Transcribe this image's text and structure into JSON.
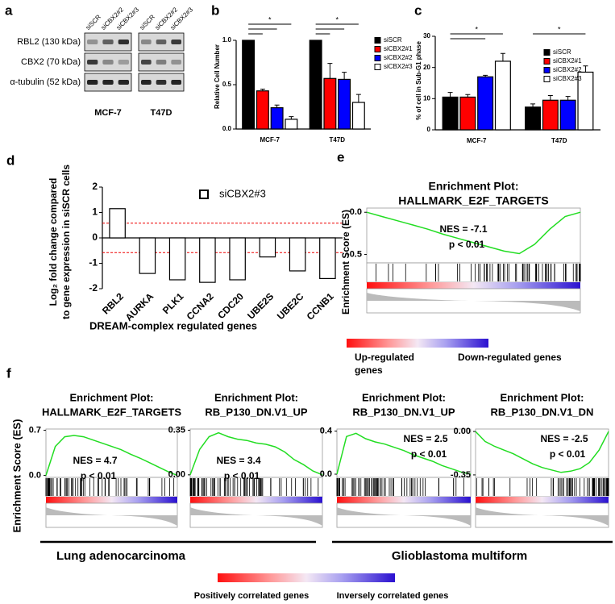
{
  "panel_labels": [
    "a",
    "b",
    "c",
    "d",
    "e",
    "f"
  ],
  "western_blot": {
    "lanes": [
      "siSCR",
      "siCBX2#2",
      "siCBX2#3",
      "siSCR",
      "siCBX2#2",
      "siCBX2#3"
    ],
    "proteins": [
      "RBL2 (130 kDa)",
      "CBX2 (70 kDa)",
      "α-tubulin (52 kDa)"
    ],
    "cell_lines": [
      "MCF-7",
      "T47D"
    ]
  },
  "chart_data": [
    {
      "type": "bar",
      "ylabel": "Relative Cell Number",
      "categories": [
        "MCF-7",
        "T47D"
      ],
      "series": [
        {
          "name": "siSCR",
          "color": "#000000",
          "values": [
            1.0,
            1.0
          ],
          "errors": [
            0,
            0
          ]
        },
        {
          "name": "siCBX2#1",
          "color": "#ff0000",
          "values": [
            0.43,
            0.57
          ],
          "errors": [
            0.02,
            0.17
          ]
        },
        {
          "name": "siCBX2#2",
          "color": "#0000ff",
          "values": [
            0.24,
            0.56
          ],
          "errors": [
            0.03,
            0.08
          ]
        },
        {
          "name": "siCBX2#3",
          "color": "#ffffff",
          "values": [
            0.11,
            0.3
          ],
          "errors": [
            0.03,
            0.09
          ]
        }
      ],
      "ylim": [
        0,
        1.2
      ],
      "yticks": [
        {
          "value": 0,
          "label": "0.0"
        },
        {
          "value": 0.5,
          "label": "0.5"
        },
        {
          "value": 1,
          "label": "1.0"
        }
      ],
      "annotations": [
        "*",
        "*"
      ]
    },
    {
      "type": "bar",
      "ylabel": "% of cell in Sub-G1 phase",
      "categories": [
        "MCF-7",
        "T47D"
      ],
      "series": [
        {
          "name": "siSCR",
          "color": "#000000",
          "values": [
            10.5,
            7.3
          ],
          "errors": [
            1.5,
            1.0
          ]
        },
        {
          "name": "siCBX2#1",
          "color": "#ff0000",
          "values": [
            10.5,
            9.5
          ],
          "errors": [
            0.8,
            1.5
          ]
        },
        {
          "name": "siCBX2#2",
          "color": "#0000ff",
          "values": [
            17,
            9.5
          ],
          "errors": [
            0.5,
            1.2
          ]
        },
        {
          "name": "siCBX2#3",
          "color": "#ffffff",
          "values": [
            22,
            18.5
          ],
          "errors": [
            2.5,
            2.0
          ]
        }
      ],
      "ylim": [
        0,
        30
      ],
      "yticks": [
        0,
        10,
        20,
        30
      ],
      "annotations": [
        "*",
        "*"
      ]
    },
    {
      "type": "bar",
      "ylabel": "Log₂ fold change compared to gene expression in siSCR cells",
      "xlabel": "DREAM-complex regulated genes",
      "categories": [
        "RBL2",
        "AURKA",
        "PLK1",
        "CCNA2",
        "CDC20",
        "UBE2S",
        "UBE2C",
        "CCNB1"
      ],
      "series": [
        {
          "name": "siCBX2#3",
          "color": "#ffffff",
          "values": [
            1.15,
            -1.4,
            -1.65,
            -1.75,
            -1.65,
            -0.75,
            -1.3,
            -1.6
          ]
        }
      ],
      "ylim": [
        -2,
        2
      ],
      "yticks": [
        -2,
        -1,
        0,
        1,
        2
      ],
      "hlines": [
        0.58,
        -0.58
      ]
    },
    {
      "type": "gsea",
      "title": [
        "Enrichment Plot:",
        "HALLMARK_E2F_TARGETS"
      ],
      "ylabel": "Enrichment Score (ES)",
      "values": [
        0,
        -0.05,
        -0.1,
        -0.15,
        -0.2,
        -0.26,
        -0.31,
        -0.36,
        -0.41,
        -0.46,
        -0.49,
        -0.38,
        -0.2,
        -0.05,
        0
      ],
      "ylim": [
        -0.6,
        0.05
      ],
      "yticks": [
        {
          "value": 0,
          "label": "0.0"
        },
        -0.5
      ],
      "nes": "NES = -7.1",
      "p": "p < 0.01"
    },
    {
      "type": "gsea",
      "title": [
        "Enrichment Plot:",
        "HALLMARK_E2F_TARGETS"
      ],
      "values": [
        0,
        0.45,
        0.6,
        0.62,
        0.6,
        0.55,
        0.5,
        0.45,
        0.4,
        0.33,
        0.27,
        0.2,
        0.13,
        0.06,
        0
      ],
      "ylim": [
        -0.03,
        0.72
      ],
      "yticks": [
        {
          "value": 0,
          "label": "0.0"
        },
        0.7
      ],
      "nes": "NES = 4.7",
      "p": "p < 0.01"
    },
    {
      "type": "gsea",
      "title": [
        "Enrichment Plot:",
        "RB_P130_DN.V1_UP"
      ],
      "values": [
        0,
        0.2,
        0.3,
        0.33,
        0.3,
        0.28,
        0.27,
        0.25,
        0.24,
        0.22,
        0.18,
        0.12,
        0.08,
        0.03,
        0
      ],
      "ylim": [
        -0.02,
        0.36
      ],
      "yticks": [
        {
          "value": 0,
          "label": "0.00"
        },
        0.35
      ],
      "nes": "NES = 3.4",
      "p": "p < 0.01"
    },
    {
      "type": "gsea",
      "title": [
        "Enrichment Plot:",
        "RB_P130_DN.V1_UP"
      ],
      "values": [
        0,
        0.35,
        0.38,
        0.33,
        0.3,
        0.28,
        0.25,
        0.22,
        0.18,
        0.15,
        0.12,
        0.08,
        0.05,
        0.02,
        0
      ],
      "ylim": [
        -0.03,
        0.42
      ],
      "yticks": [
        {
          "value": 0,
          "label": "0.0"
        },
        0.4
      ],
      "nes": "NES = 2.5",
      "p": "p < 0.01"
    },
    {
      "type": "gsea",
      "title": [
        "Enrichment Plot:",
        "RB_P130_DN.V1_DN"
      ],
      "values": [
        0,
        -0.08,
        -0.12,
        -0.15,
        -0.18,
        -0.22,
        -0.26,
        -0.29,
        -0.31,
        -0.33,
        -0.32,
        -0.3,
        -0.25,
        -0.15,
        0
      ],
      "ylim": [
        -0.37,
        0.02
      ],
      "yticks": [
        {
          "value": 0,
          "label": "0.00"
        },
        -0.35
      ],
      "nes": "NES = -2.5",
      "p": "p < 0.01"
    }
  ],
  "e_legend": {
    "up": [
      "Up-regulated",
      "genes"
    ],
    "down": "Down-regulated genes"
  },
  "f_shared": {
    "ylabel": "Enrichment Score (ES)",
    "groups": [
      "Lung adenocarcinoma",
      "Glioblastoma multiform"
    ],
    "legend": [
      "Positively correlated genes",
      "Inversely correlated genes"
    ]
  }
}
